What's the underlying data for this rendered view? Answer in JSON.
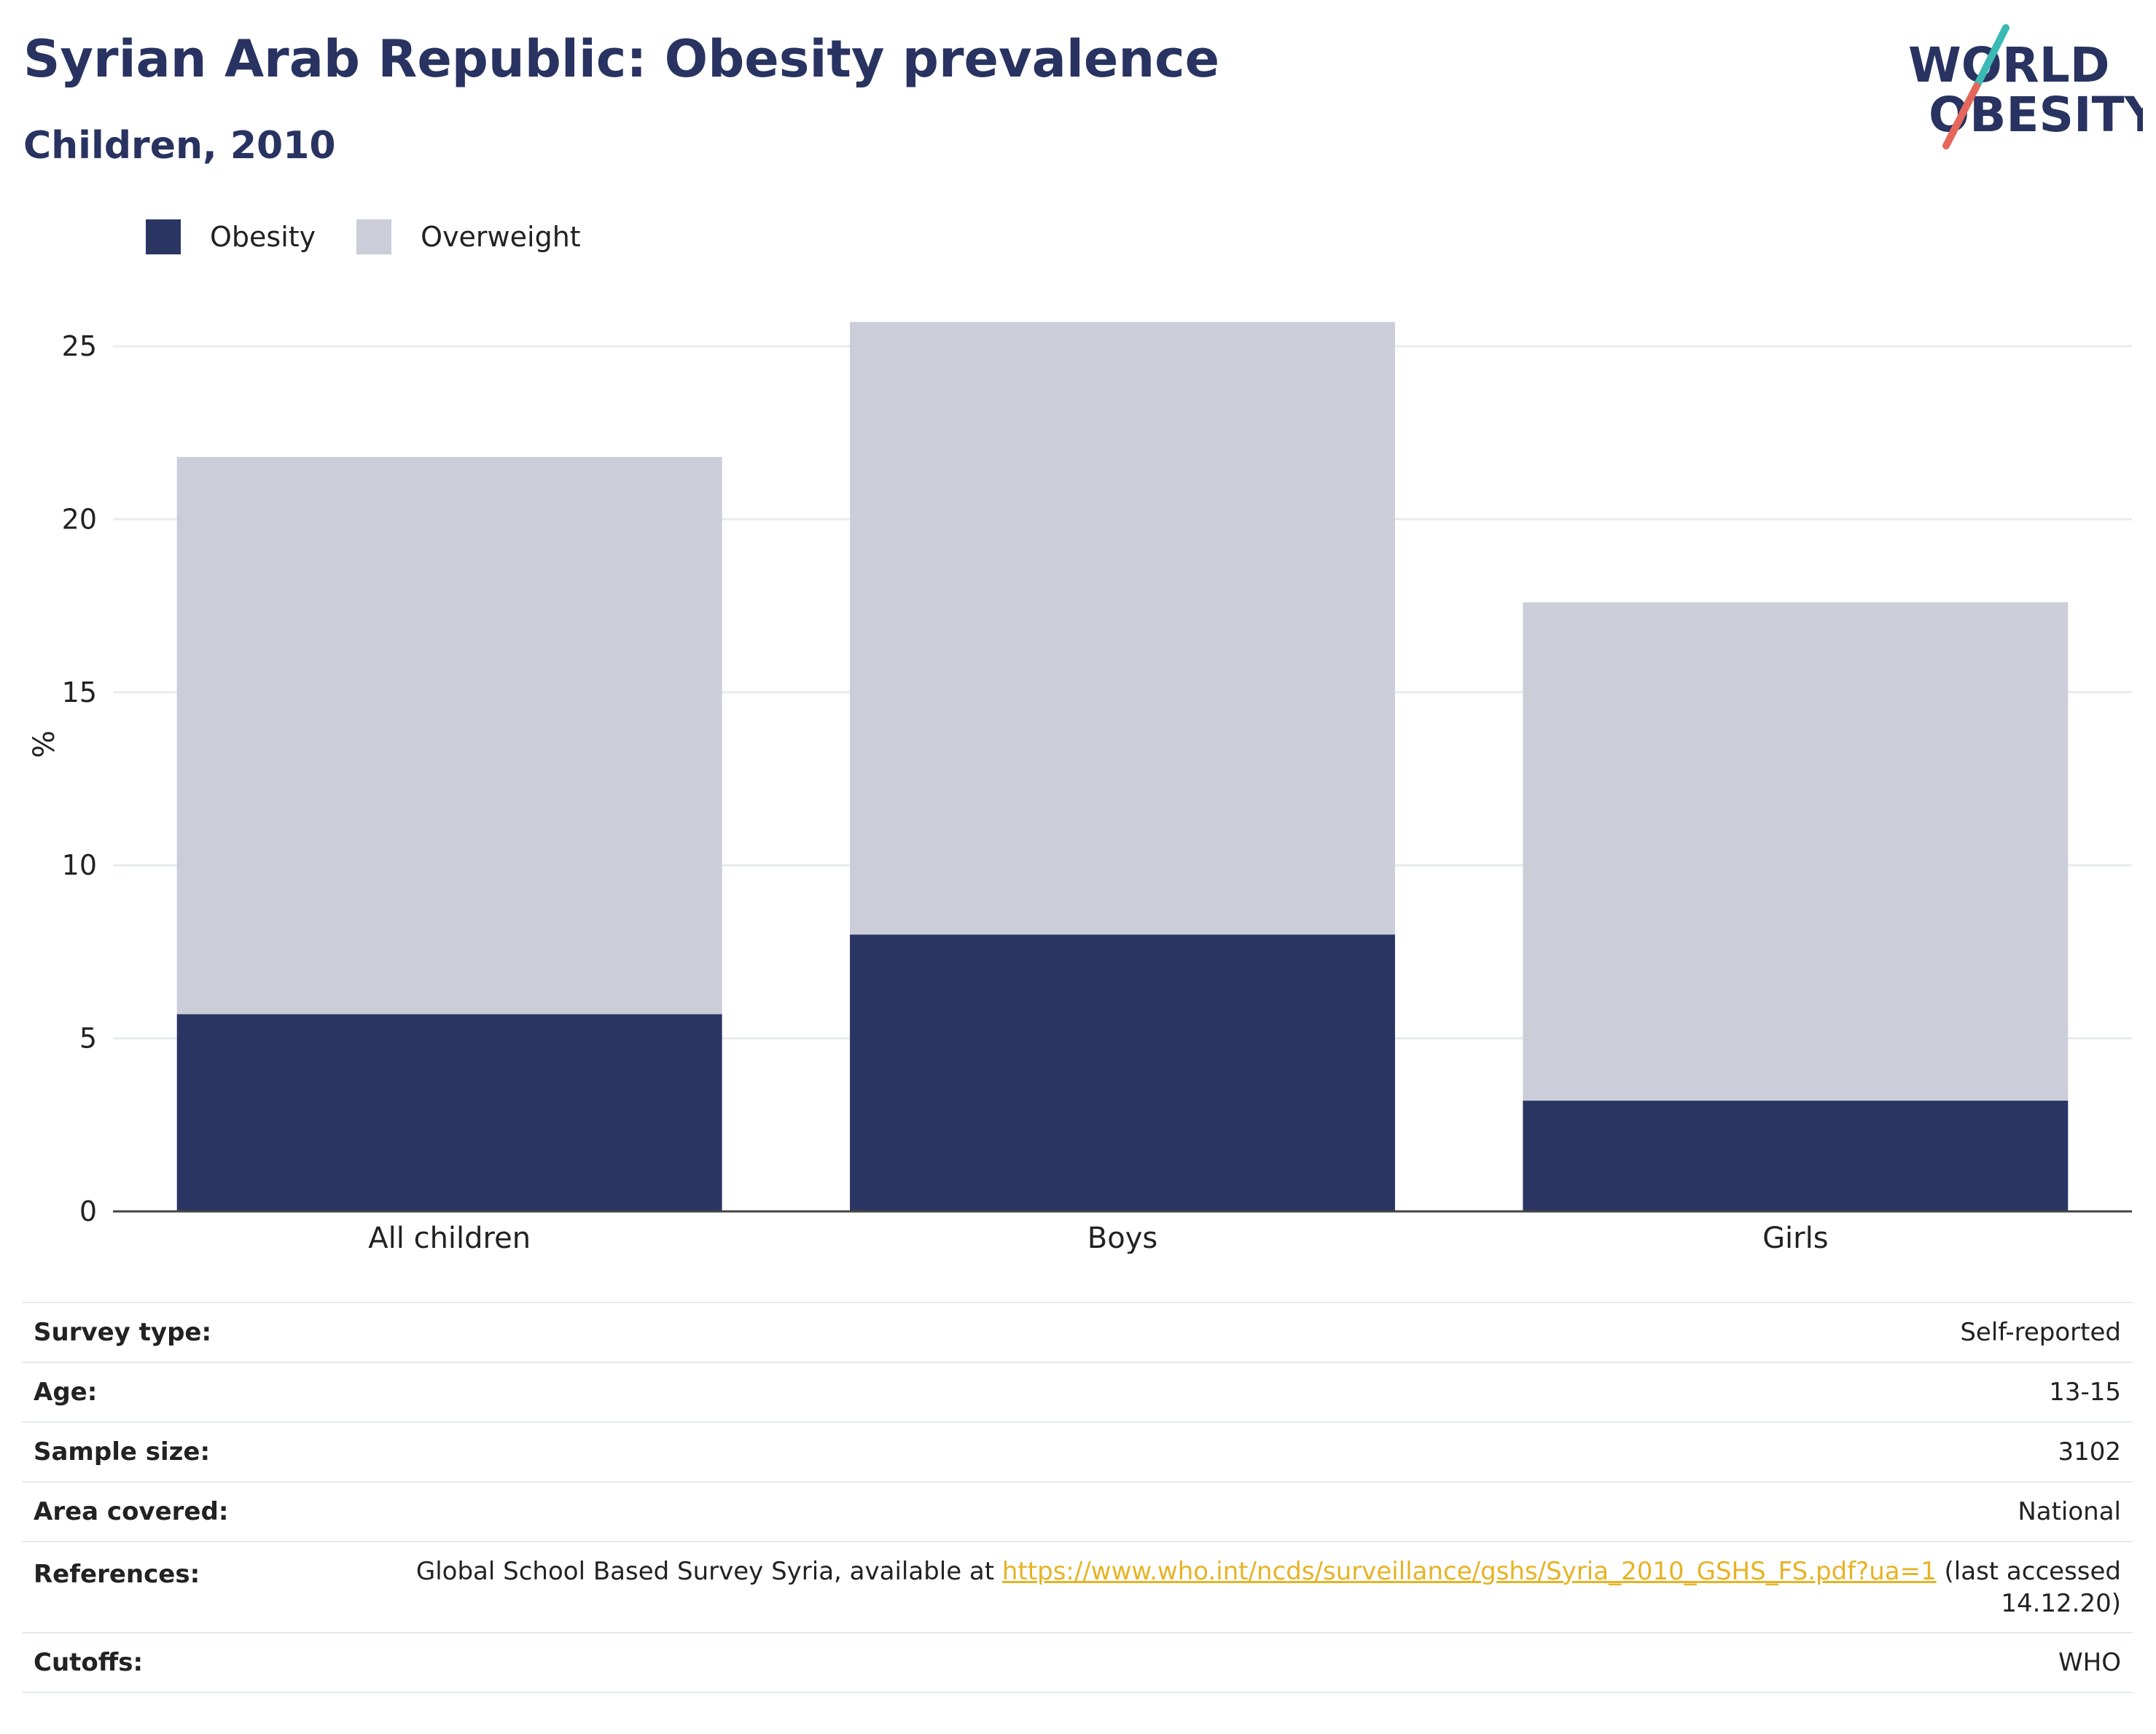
{
  "header": {
    "title": "Syrian Arab Republic: Obesity prevalence",
    "subtitle": "Children, 2010"
  },
  "logo": {
    "line1": "WORLD",
    "line2": "OBESITY",
    "icon": "world-obesity-logo"
  },
  "colors": {
    "obesity": "#2b3564",
    "overweight": "#cbcdd8",
    "text": "#283361",
    "link": "#e6b325",
    "grid": "#e8ebf0"
  },
  "chart_data": {
    "type": "bar",
    "stacked": true,
    "categories": [
      "All children",
      "Boys",
      "Girls"
    ],
    "series": [
      {
        "name": "Obesity",
        "values": [
          5.7,
          8.0,
          3.2
        ]
      },
      {
        "name": "Overweight",
        "values": [
          16.1,
          17.7,
          14.4
        ]
      }
    ],
    "ylabel": "%",
    "xlabel": "",
    "ylim": [
      0,
      27
    ],
    "yticks": [
      0,
      5,
      10,
      15,
      20,
      25
    ],
    "grid": true,
    "legend_position": "top-left"
  },
  "info": {
    "rows": [
      {
        "key": "Survey type:",
        "value": "Self-reported"
      },
      {
        "key": "Age:",
        "value": "13-15"
      },
      {
        "key": "Sample size:",
        "value": "3102"
      },
      {
        "key": "Area covered:",
        "value": "National"
      },
      {
        "key": "References:",
        "value_pre": "Global School Based Survey Syria, available at ",
        "link": "https://www.who.int/ncds/surveillance/gshs/Syria_2010_GSHS_FS.pdf?ua=1",
        "value_post": " (last accessed 14.12.20)"
      },
      {
        "key": "Cutoffs:",
        "value": "WHO"
      }
    ]
  }
}
